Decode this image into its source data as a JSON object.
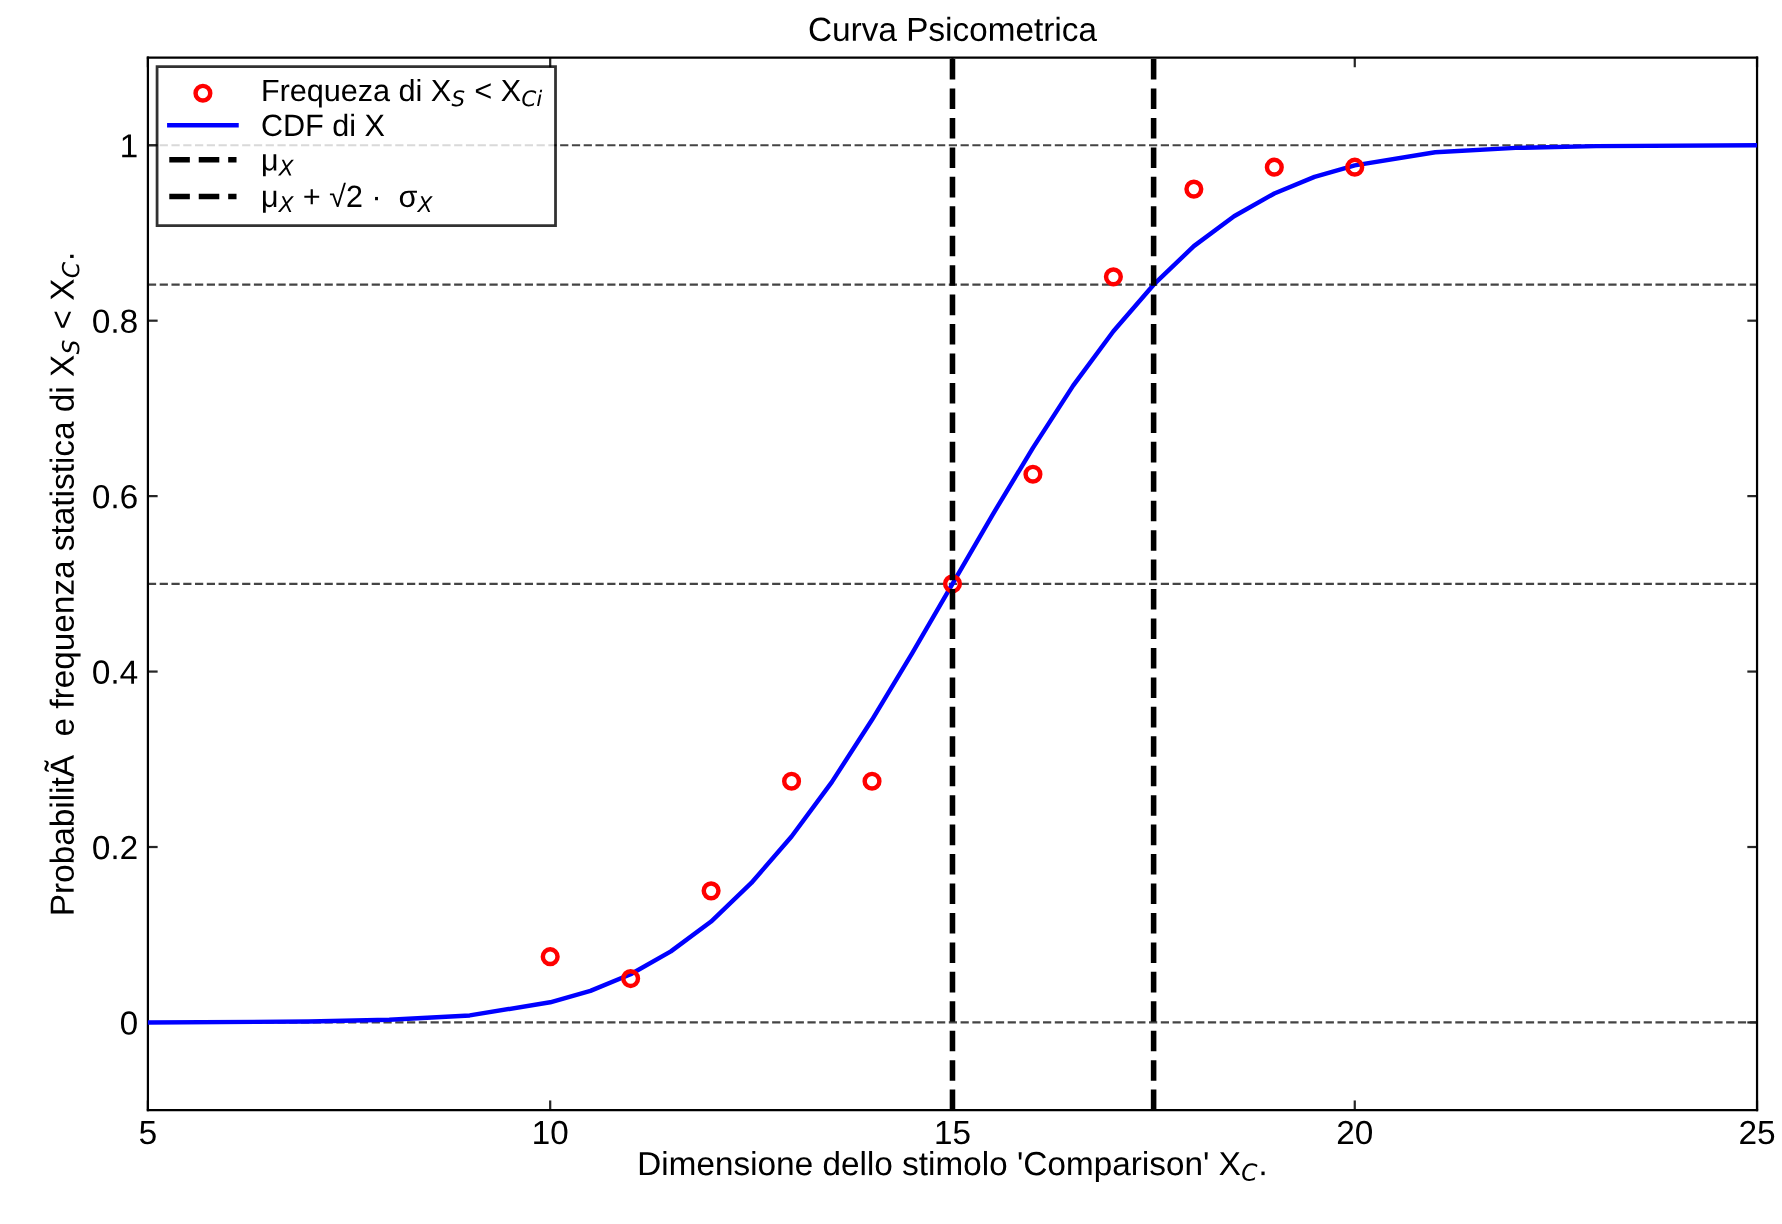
{
  "chart_data": {
    "type": "scatter",
    "title": "Curva Psicometrica",
    "xlabel": "Dimensione dello stimolo 'Comparison' X$_{C}$.",
    "ylabel": "ProbabilitÃ  e frequenza statistica di X$_{S}$ < X$_{C}$.",
    "xlim": [
      5,
      25
    ],
    "xticks": [
      5,
      10,
      15,
      20,
      25
    ],
    "ylim": [
      -0.1,
      1.1
    ],
    "yticks": [
      0,
      0.2,
      0.4,
      0.6,
      0.8,
      1
    ],
    "grid": false,
    "legend": "top left",
    "series": [
      {
        "name": "Frequeza di X$_{S}$ < X$_{Ci}$",
        "type": "scatter",
        "marker": "circle",
        "color": "#ff0000",
        "x": [
          10,
          11,
          12,
          13,
          14,
          15,
          16,
          17,
          18,
          19,
          20
        ],
        "values": [
          0.075,
          0.05,
          0.15,
          0.275,
          0.275,
          0.5,
          0.625,
          0.85,
          0.95,
          0.975,
          0.975
        ]
      },
      {
        "name": "CDF di X",
        "type": "line",
        "marker": "none",
        "line_style": "solid",
        "color": "#0000ff",
        "x": [
          5,
          7,
          8,
          9,
          10,
          10.5,
          11,
          11.5,
          12,
          12.5,
          13,
          13.5,
          14,
          14.5,
          15,
          15.5,
          16,
          16.5,
          17,
          17.5,
          18,
          18.5,
          19,
          19.5,
          20,
          21,
          22,
          23,
          25
        ],
        "values": [
          0,
          0.001,
          0.003,
          0.008,
          0.023,
          0.036,
          0.055,
          0.081,
          0.115,
          0.159,
          0.212,
          0.274,
          0.345,
          0.421,
          0.5,
          0.579,
          0.655,
          0.726,
          0.788,
          0.841,
          0.885,
          0.919,
          0.945,
          0.964,
          0.977,
          0.992,
          0.997,
          0.999,
          1
        ]
      },
      {
        "name": "μ$_{X}$",
        "type": "line",
        "marker": "none",
        "line_style": "dashed",
        "color": "#000000",
        "x": [
          15,
          15
        ],
        "values": [
          -0.1,
          1.1
        ]
      },
      {
        "name": "μ$_{X}$ + √2 ·  σ$_{X}$",
        "type": "line",
        "marker": "none",
        "line_style": "dashed",
        "color": "#000000",
        "x": [
          17.5,
          17.5
        ],
        "values": [
          -0.1,
          1.1
        ]
      }
    ],
    "ref_lines": [
      {
        "axis": "y",
        "value": 0,
        "color": "#444444",
        "line_style": "dashed"
      },
      {
        "axis": "y",
        "value": 0.5,
        "color": "#444444",
        "line_style": "dashed"
      },
      {
        "axis": "y",
        "value": 0.841,
        "color": "#444444",
        "line_style": "dashed"
      },
      {
        "axis": "y",
        "value": 1,
        "color": "#444444",
        "line_style": "dashed"
      }
    ]
  }
}
